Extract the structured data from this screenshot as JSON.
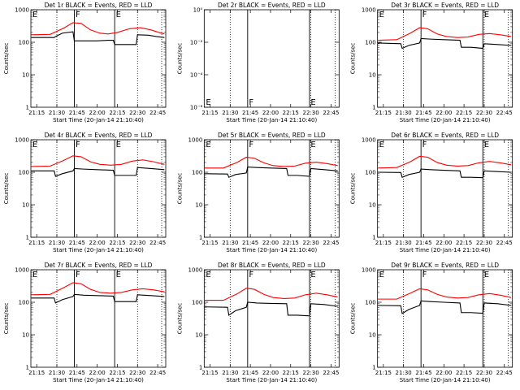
{
  "colors": {
    "events": "#000000",
    "lld": "#ff0000",
    "background": "#ffffff"
  },
  "chart_data": [
    {
      "type": "line",
      "title": "Det 1r BLACK = Events, RED = LLD",
      "xlabel": "Start Time (20-Jan-14 21:10:40)",
      "ylabel": "Counts/sec",
      "yscale": "log",
      "ylim": [
        1,
        1000
      ],
      "yticks": [
        "1",
        "10",
        "100",
        "1000"
      ],
      "xticks": [
        "21:15",
        "21:30",
        "21:45",
        "22:00",
        "22:15",
        "22:30",
        "22:45"
      ],
      "xlim": [
        "21:10:40",
        "22:51"
      ],
      "markers": {
        "left": "E",
        "center": "F",
        "right": "E"
      },
      "dotted_times": [
        "21:30",
        "22:30",
        "22:48"
      ],
      "solid_times": [
        "21:43",
        "22:13"
      ],
      "series": [
        {
          "name": "Events",
          "color": "#000000",
          "x": [
            "21:11",
            "21:28",
            "21:29",
            "21:34",
            "21:42",
            "21:43",
            "21:50",
            "22:00",
            "22:08",
            "22:12",
            "22:13",
            "22:14",
            "22:24",
            "22:29",
            "22:30",
            "22:38",
            "22:44",
            "22:50"
          ],
          "y": [
            140,
            140,
            150,
            190,
            210,
            110,
            110,
            110,
            115,
            115,
            85,
            85,
            85,
            85,
            170,
            165,
            150,
            140
          ]
        },
        {
          "name": "LLD",
          "color": "#ff0000",
          "x": [
            "21:11",
            "21:25",
            "21:35",
            "21:42",
            "21:48",
            "21:55",
            "22:02",
            "22:08",
            "22:15",
            "22:24",
            "22:32",
            "22:40",
            "22:46",
            "22:50"
          ],
          "y": [
            170,
            175,
            270,
            400,
            380,
            240,
            190,
            180,
            200,
            260,
            280,
            240,
            200,
            180
          ]
        }
      ]
    },
    {
      "type": "line",
      "title": "Det 2r BLACK = Events, RED = LLD",
      "xlabel": "Start Time (20-Jan-14 21:10:40)",
      "ylabel": "Counts/sec",
      "yscale": "log",
      "ylim": [
        1e-07,
        1
      ],
      "yticks": [
        "10⁻⁶",
        "10⁻⁴",
        "10⁻²",
        "10⁰"
      ],
      "xticks": [
        "21:15",
        "21:30",
        "21:45",
        "22:00",
        "22:15",
        "22:30",
        "22:45"
      ],
      "xlim": [
        "21:10:40",
        "22:51"
      ],
      "markers": {
        "left": "E",
        "center": "F",
        "right": "E"
      },
      "dotted_times": [
        "21:30",
        "22:30",
        "22:48"
      ],
      "solid_times": [
        "21:43",
        "22:29"
      ],
      "series": []
    },
    {
      "type": "line",
      "title": "Det 3r BLACK = Events, RED = LLD",
      "xlabel": "Start Time (20-Jan-14 21:10:40)",
      "ylabel": "Counts/sec",
      "yscale": "log",
      "ylim": [
        1,
        1000
      ],
      "yticks": [
        "1",
        "10",
        "100",
        "1000"
      ],
      "xticks": [
        "21:15",
        "21:30",
        "21:45",
        "22:00",
        "22:15",
        "22:30",
        "22:45"
      ],
      "xlim": [
        "21:10:40",
        "22:51"
      ],
      "markers": {
        "left": "E",
        "center": "F",
        "right": "E"
      },
      "dotted_times": [
        "21:30",
        "22:30",
        "22:48"
      ],
      "solid_times": [
        "21:43",
        "22:29"
      ],
      "series": [
        {
          "name": "Events",
          "color": "#000000",
          "x": [
            "21:11",
            "21:28",
            "21:29",
            "21:34",
            "21:42",
            "21:43",
            "21:50",
            "22:00",
            "22:12",
            "22:13",
            "22:20",
            "22:29",
            "22:30",
            "22:40",
            "22:50"
          ],
          "y": [
            95,
            90,
            65,
            80,
            95,
            130,
            125,
            120,
            115,
            70,
            70,
            65,
            90,
            85,
            80
          ]
        },
        {
          "name": "LLD",
          "color": "#ff0000",
          "x": [
            "21:11",
            "21:25",
            "21:35",
            "21:42",
            "21:48",
            "21:55",
            "22:02",
            "22:10",
            "22:18",
            "22:26",
            "22:34",
            "22:42",
            "22:50"
          ],
          "y": [
            115,
            120,
            190,
            280,
            260,
            180,
            150,
            140,
            145,
            175,
            185,
            170,
            150
          ]
        }
      ]
    },
    {
      "type": "line",
      "title": "Det 4r BLACK = Events, RED = LLD",
      "xlabel": "Start Time (20-Jan-14 21:10:40)",
      "ylabel": "Counts/sec",
      "yscale": "log",
      "ylim": [
        1,
        1000
      ],
      "yticks": [
        "1",
        "10",
        "100",
        "1000"
      ],
      "xticks": [
        "21:15",
        "21:30",
        "21:45",
        "22:00",
        "22:15",
        "22:30",
        "22:45"
      ],
      "xlim": [
        "21:10:40",
        "22:51"
      ],
      "markers": {
        "left": "E",
        "center": "F",
        "right": "E"
      },
      "dotted_times": [
        "21:30",
        "22:30",
        "22:48"
      ],
      "solid_times": [
        "21:43",
        "22:13"
      ],
      "series": [
        {
          "name": "Events",
          "color": "#000000",
          "x": [
            "21:11",
            "21:28",
            "21:29",
            "21:34",
            "21:42",
            "21:43",
            "21:50",
            "22:00",
            "22:12",
            "22:13",
            "22:24",
            "22:29",
            "22:30",
            "22:40",
            "22:50"
          ],
          "y": [
            110,
            110,
            75,
            90,
            110,
            130,
            125,
            120,
            115,
            80,
            80,
            80,
            140,
            130,
            120
          ]
        },
        {
          "name": "LLD",
          "color": "#ff0000",
          "x": [
            "21:11",
            "21:25",
            "21:35",
            "21:42",
            "21:48",
            "21:55",
            "22:02",
            "22:10",
            "22:18",
            "22:26",
            "22:34",
            "22:42",
            "22:50"
          ],
          "y": [
            150,
            155,
            230,
            320,
            300,
            210,
            175,
            165,
            175,
            220,
            240,
            210,
            175
          ]
        }
      ]
    },
    {
      "type": "line",
      "title": "Det 5r BLACK = Events, RED = LLD",
      "xlabel": "Start Time (20-Jan-14 21:10:40)",
      "ylabel": "Counts/sec",
      "yscale": "log",
      "ylim": [
        1,
        1000
      ],
      "yticks": [
        "1",
        "10",
        "100",
        "1000"
      ],
      "xticks": [
        "21:15",
        "21:30",
        "21:45",
        "22:00",
        "22:15",
        "22:30",
        "22:45"
      ],
      "xlim": [
        "21:10:40",
        "22:51"
      ],
      "markers": {
        "left": "E",
        "center": "F",
        "right": "E"
      },
      "dotted_times": [
        "21:30",
        "22:30",
        "22:48"
      ],
      "solid_times": [
        "21:43",
        "22:29"
      ],
      "series": [
        {
          "name": "Events",
          "color": "#000000",
          "x": [
            "21:11",
            "21:28",
            "21:29",
            "21:34",
            "21:42",
            "21:43",
            "21:50",
            "22:00",
            "22:12",
            "22:13",
            "22:20",
            "22:29",
            "22:30",
            "22:40",
            "22:50"
          ],
          "y": [
            90,
            88,
            70,
            85,
            95,
            145,
            140,
            135,
            130,
            80,
            80,
            75,
            130,
            120,
            110
          ]
        },
        {
          "name": "LLD",
          "color": "#ff0000",
          "x": [
            "21:11",
            "21:25",
            "21:35",
            "21:42",
            "21:48",
            "21:55",
            "22:02",
            "22:10",
            "22:18",
            "22:26",
            "22:34",
            "22:42",
            "22:50"
          ],
          "y": [
            135,
            135,
            200,
            290,
            270,
            195,
            160,
            150,
            155,
            190,
            205,
            185,
            160
          ]
        }
      ]
    },
    {
      "type": "line",
      "title": "Det 6r BLACK = Events, RED = LLD",
      "xlabel": "Start Time (20-Jan-14 21:10:40)",
      "ylabel": "Counts/sec",
      "yscale": "log",
      "ylim": [
        1,
        1000
      ],
      "yticks": [
        "1",
        "10",
        "100",
        "1000"
      ],
      "xticks": [
        "21:15",
        "21:30",
        "21:45",
        "22:00",
        "22:15",
        "22:30",
        "22:45"
      ],
      "xlim": [
        "21:10:40",
        "22:51"
      ],
      "markers": {
        "left": "E",
        "center": "F",
        "right": "E"
      },
      "dotted_times": [
        "21:30",
        "22:30",
        "22:48"
      ],
      "solid_times": [
        "21:43",
        "22:29"
      ],
      "series": [
        {
          "name": "Events",
          "color": "#000000",
          "x": [
            "21:11",
            "21:28",
            "21:29",
            "21:34",
            "21:42",
            "21:43",
            "21:50",
            "22:00",
            "22:12",
            "22:13",
            "22:20",
            "22:29",
            "22:30",
            "22:40",
            "22:50"
          ],
          "y": [
            100,
            98,
            70,
            85,
            100,
            125,
            120,
            115,
            110,
            70,
            70,
            68,
            110,
            105,
            100
          ]
        },
        {
          "name": "LLD",
          "color": "#ff0000",
          "x": [
            "21:11",
            "21:25",
            "21:35",
            "21:42",
            "21:48",
            "21:55",
            "22:02",
            "22:10",
            "22:18",
            "22:26",
            "22:34",
            "22:42",
            "22:50"
          ],
          "y": [
            135,
            140,
            210,
            310,
            290,
            200,
            165,
            155,
            160,
            195,
            215,
            195,
            170
          ]
        }
      ]
    },
    {
      "type": "line",
      "title": "Det 7r BLACK = Events, RED = LLD",
      "xlabel": "Start Time (20-Jan-14 21:10:40)",
      "ylabel": "Counts/sec",
      "yscale": "log",
      "ylim": [
        1,
        1000
      ],
      "yticks": [
        "1",
        "10",
        "100",
        "1000"
      ],
      "xticks": [
        "21:15",
        "21:30",
        "21:45",
        "22:00",
        "22:15",
        "22:30",
        "22:45"
      ],
      "xlim": [
        "21:10:40",
        "22:51"
      ],
      "markers": {
        "left": "E",
        "center": "F",
        "right": "E"
      },
      "dotted_times": [
        "21:30",
        "22:30",
        "22:48"
      ],
      "solid_times": [
        "21:43",
        "22:13"
      ],
      "series": [
        {
          "name": "Events",
          "color": "#000000",
          "x": [
            "21:11",
            "21:28",
            "21:29",
            "21:34",
            "21:42",
            "21:43",
            "21:50",
            "22:00",
            "22:12",
            "22:13",
            "22:24",
            "22:29",
            "22:30",
            "22:40",
            "22:50"
          ],
          "y": [
            135,
            135,
            95,
            120,
            150,
            175,
            165,
            160,
            155,
            105,
            105,
            105,
            170,
            160,
            150
          ]
        },
        {
          "name": "LLD",
          "color": "#ff0000",
          "x": [
            "21:11",
            "21:25",
            "21:35",
            "21:42",
            "21:48",
            "21:55",
            "22:02",
            "22:10",
            "22:18",
            "22:26",
            "22:34",
            "22:42",
            "22:50"
          ],
          "y": [
            170,
            175,
            280,
            400,
            370,
            250,
            200,
            190,
            200,
            240,
            260,
            240,
            210
          ]
        }
      ]
    },
    {
      "type": "line",
      "title": "Det 8r BLACK = Events, RED = LLD",
      "xlabel": "Start Time (20-Jan-14 21:10:40)",
      "ylabel": "Counts/sec",
      "yscale": "log",
      "ylim": [
        1,
        1000
      ],
      "yticks": [
        "1",
        "10",
        "100",
        "1000"
      ],
      "xticks": [
        "21:15",
        "21:30",
        "21:45",
        "22:00",
        "22:15",
        "22:30",
        "22:45"
      ],
      "xlim": [
        "21:10:40",
        "22:51"
      ],
      "markers": {
        "left": "E",
        "center": "F",
        "right": "E"
      },
      "dotted_times": [
        "21:30",
        "22:30",
        "22:48"
      ],
      "solid_times": [
        "21:43",
        "22:29"
      ],
      "series": [
        {
          "name": "Events",
          "color": "#000000",
          "x": [
            "21:11",
            "21:28",
            "21:29",
            "21:34",
            "21:42",
            "21:43",
            "21:50",
            "22:00",
            "22:12",
            "22:13",
            "22:20",
            "22:29",
            "22:30",
            "22:40",
            "22:50"
          ],
          "y": [
            72,
            70,
            40,
            55,
            70,
            100,
            95,
            92,
            90,
            40,
            40,
            38,
            90,
            85,
            75
          ]
        },
        {
          "name": "LLD",
          "color": "#ff0000",
          "x": [
            "21:11",
            "21:25",
            "21:35",
            "21:42",
            "21:48",
            "21:55",
            "22:02",
            "22:10",
            "22:18",
            "22:26",
            "22:34",
            "22:42",
            "22:50"
          ],
          "y": [
            115,
            115,
            180,
            270,
            250,
            175,
            140,
            130,
            135,
            170,
            190,
            170,
            145
          ]
        }
      ]
    },
    {
      "type": "line",
      "title": "Det 9r BLACK = Events, RED = LLD",
      "xlabel": "Start Time (20-Jan-14 21:10:40)",
      "ylabel": "Counts/sec",
      "yscale": "log",
      "ylim": [
        1,
        1000
      ],
      "yticks": [
        "1",
        "10",
        "100",
        "1000"
      ],
      "xticks": [
        "21:15",
        "21:30",
        "21:45",
        "22:00",
        "22:15",
        "22:30",
        "22:45"
      ],
      "xlim": [
        "21:10:40",
        "22:51"
      ],
      "markers": {
        "left": "E",
        "center": "F",
        "right": "E"
      },
      "dotted_times": [
        "21:30",
        "22:30",
        "22:48"
      ],
      "solid_times": [
        "21:43",
        "22:29"
      ],
      "series": [
        {
          "name": "Events",
          "color": "#000000",
          "x": [
            "21:11",
            "21:28",
            "21:29",
            "21:34",
            "21:42",
            "21:43",
            "21:50",
            "22:00",
            "22:12",
            "22:13",
            "22:20",
            "22:29",
            "22:30",
            "22:40",
            "22:50"
          ],
          "y": [
            80,
            78,
            45,
            60,
            80,
            110,
            105,
            100,
            95,
            48,
            48,
            46,
            95,
            90,
            80
          ]
        },
        {
          "name": "LLD",
          "color": "#ff0000",
          "x": [
            "21:11",
            "21:25",
            "21:35",
            "21:42",
            "21:48",
            "21:55",
            "22:02",
            "22:10",
            "22:18",
            "22:26",
            "22:34",
            "22:42",
            "22:50"
          ],
          "y": [
            125,
            125,
            190,
            260,
            240,
            175,
            145,
            135,
            140,
            170,
            185,
            165,
            140
          ]
        }
      ]
    }
  ]
}
